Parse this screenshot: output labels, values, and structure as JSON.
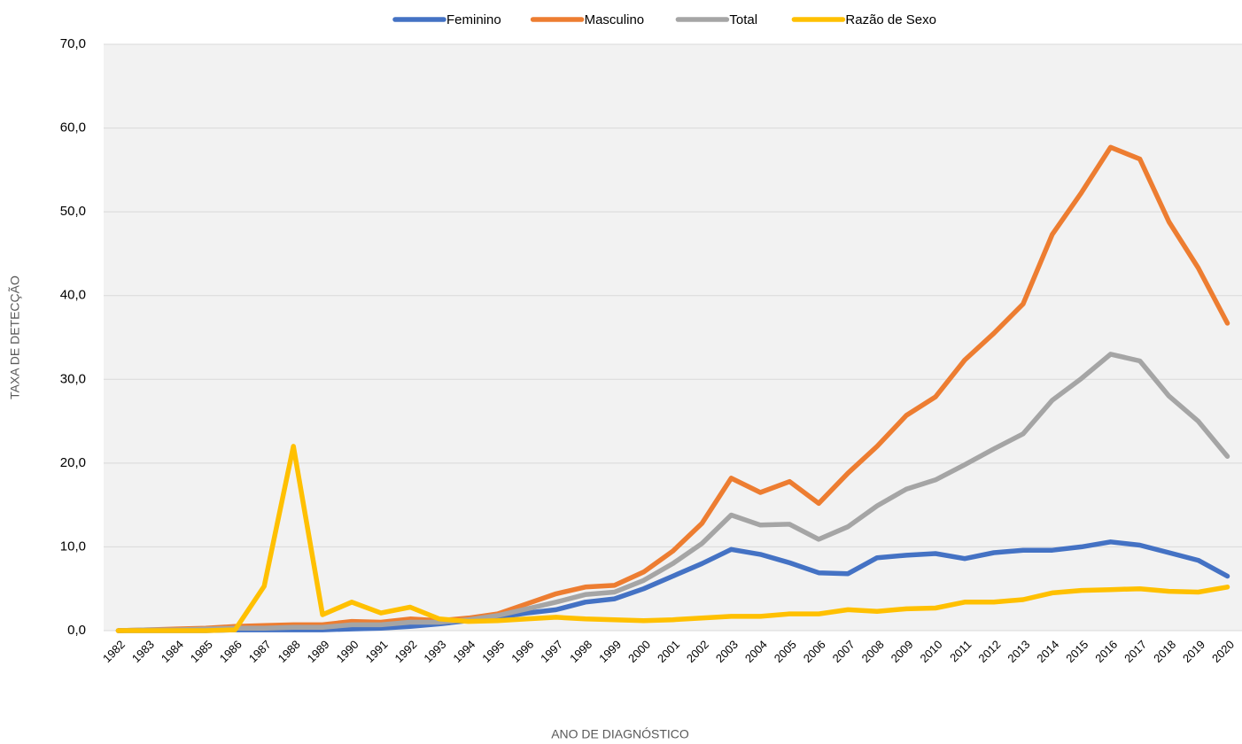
{
  "chart_data": {
    "type": "line",
    "x_label": "ANO DE DIAGNÓSTICO",
    "y_label": "TAXA DE DETECÇÃO",
    "categories": [
      "1982",
      "1983",
      "1984",
      "1985",
      "1986",
      "1987",
      "1988",
      "1989",
      "1990",
      "1991",
      "1992",
      "1993",
      "1994",
      "1995",
      "1996",
      "1997",
      "1998",
      "1999",
      "2000",
      "2001",
      "2002",
      "2003",
      "2004",
      "2005",
      "2006",
      "2007",
      "2008",
      "2009",
      "2010",
      "2011",
      "2012",
      "2013",
      "2014",
      "2015",
      "2016",
      "2017",
      "2018",
      "2019",
      "2020"
    ],
    "series": [
      {
        "name": "Feminino",
        "color": "#4472c4",
        "values": [
          0.0,
          0.0,
          0.0,
          0.0,
          0.1,
          0.1,
          0.1,
          0.1,
          0.2,
          0.3,
          0.5,
          0.8,
          1.2,
          1.6,
          2.1,
          2.5,
          3.4,
          3.8,
          5.0,
          6.5,
          8.0,
          9.7,
          9.1,
          8.1,
          6.9,
          6.8,
          8.7,
          9.0,
          9.2,
          8.6,
          9.3,
          9.6,
          9.6,
          10.0,
          10.6,
          10.2,
          9.3,
          8.4,
          6.5
        ]
      },
      {
        "name": "Masculino",
        "color": "#ed7d31",
        "values": [
          0.0,
          0.1,
          0.2,
          0.3,
          0.5,
          0.6,
          0.7,
          0.7,
          1.1,
          1.0,
          1.4,
          1.2,
          1.5,
          2.0,
          3.2,
          4.4,
          5.2,
          5.4,
          7.0,
          9.5,
          12.8,
          18.2,
          16.5,
          17.8,
          15.2,
          18.8,
          22.0,
          25.7,
          27.9,
          32.3,
          35.5,
          39.0,
          47.3,
          52.3,
          57.7,
          56.3,
          48.8,
          43.3,
          36.7
        ]
      },
      {
        "name": "Total",
        "color": "#a5a5a5",
        "values": [
          0.0,
          0.1,
          0.1,
          0.2,
          0.3,
          0.3,
          0.4,
          0.4,
          0.7,
          0.7,
          1.0,
          1.0,
          1.3,
          1.8,
          2.6,
          3.4,
          4.3,
          4.6,
          6.0,
          8.0,
          10.4,
          13.8,
          12.6,
          12.7,
          10.9,
          12.4,
          14.9,
          16.9,
          18.0,
          19.8,
          21.7,
          23.5,
          27.5,
          30.1,
          33.0,
          32.2,
          28.0,
          25.0,
          20.8
        ]
      },
      {
        "name": "Razão de Sexo",
        "color": "#ffc000",
        "values": [
          0.0,
          0.0,
          0.0,
          0.0,
          0.1,
          5.3,
          22.0,
          1.9,
          3.4,
          2.1,
          2.8,
          1.4,
          1.1,
          1.2,
          1.4,
          1.6,
          1.4,
          1.3,
          1.2,
          1.3,
          1.5,
          1.7,
          1.7,
          2.0,
          2.0,
          2.5,
          2.3,
          2.6,
          2.7,
          3.4,
          3.4,
          3.7,
          4.5,
          4.8,
          4.9,
          5.0,
          4.7,
          4.6,
          5.2
        ]
      }
    ],
    "ylim": [
      0,
      70
    ],
    "yticks": [
      {
        "value": 0,
        "label": "0,0"
      },
      {
        "value": 10,
        "label": "10,0"
      },
      {
        "value": 20,
        "label": "20,0"
      },
      {
        "value": 30,
        "label": "30,0"
      },
      {
        "value": 40,
        "label": "40,0"
      },
      {
        "value": 50,
        "label": "50,0"
      },
      {
        "value": 60,
        "label": "60,0"
      },
      {
        "value": 70,
        "label": "70,0"
      }
    ],
    "grid": true,
    "legend": "top"
  }
}
